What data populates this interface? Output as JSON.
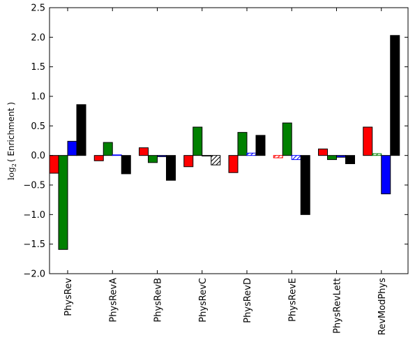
{
  "chart_data": {
    "type": "bar",
    "title": "",
    "xlabel": "",
    "ylabel_math": "log",
    "ylabel_sub": "2",
    "ylabel_text": "( Enrichment )",
    "ylim": [
      -2.0,
      2.5
    ],
    "yticks": [
      -2.0,
      -1.5,
      -1.0,
      -0.5,
      0.0,
      0.5,
      1.0,
      1.5,
      2.0,
      2.5
    ],
    "ytick_labels": [
      "−2.0",
      "−1.5",
      "−1.0",
      "−0.5",
      "0.0",
      "0.5",
      "1.0",
      "1.5",
      "2.0",
      "2.5"
    ],
    "grid": false,
    "categories": [
      "PhysRev",
      "PhysRevA",
      "PhysRevB",
      "PhysRevC",
      "PhysRevD",
      "PhysRevE",
      "PhysRevLett",
      "RevModPhys"
    ],
    "series": [
      {
        "color": "#ff0000",
        "values": [
          -0.3,
          -0.09,
          0.13,
          -0.19,
          -0.29,
          -0.04,
          0.11,
          0.48
        ],
        "hatched": [
          false,
          false,
          false,
          false,
          false,
          true,
          false,
          false
        ]
      },
      {
        "color": "#008000",
        "values": [
          -1.59,
          0.22,
          -0.12,
          0.48,
          0.39,
          0.55,
          -0.07,
          0.03
        ],
        "hatched": [
          false,
          false,
          false,
          false,
          false,
          false,
          false,
          true
        ]
      },
      {
        "color": "#0000ff",
        "values": [
          0.24,
          0.01,
          -0.02,
          0.0,
          0.04,
          -0.07,
          -0.03,
          -0.65
        ],
        "hatched": [
          false,
          true,
          false,
          false,
          true,
          true,
          false,
          false
        ]
      },
      {
        "color": "#000000",
        "values": [
          0.86,
          -0.31,
          -0.42,
          -0.16,
          0.34,
          -1.0,
          -0.14,
          2.03
        ],
        "hatched": [
          false,
          false,
          false,
          true,
          false,
          false,
          false,
          false
        ]
      }
    ]
  }
}
